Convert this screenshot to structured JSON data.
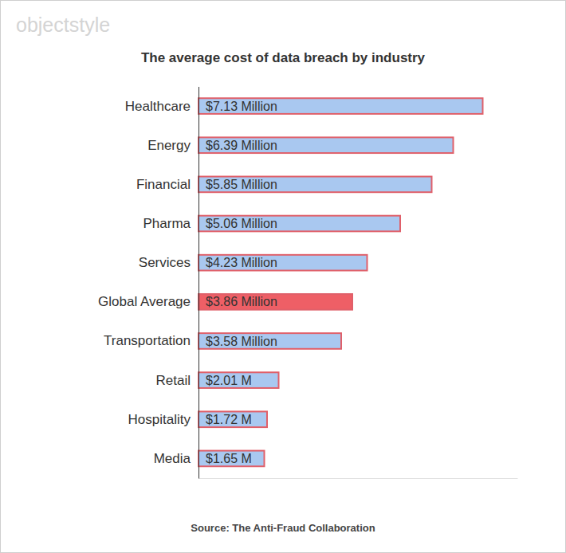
{
  "chart_data": {
    "type": "bar",
    "orientation": "horizontal",
    "title": "The average cost of data breach by industry",
    "categories": [
      "Healthcare",
      "Energy",
      "Financial",
      "Pharma",
      "Services",
      "Global Average",
      "Transportation",
      "Retail",
      "Hospitality",
      "Media"
    ],
    "values": [
      7.13,
      6.39,
      5.85,
      5.06,
      4.23,
      3.86,
      3.58,
      2.01,
      1.72,
      1.65
    ],
    "value_labels": [
      "$7.13 Million",
      "$6.39 Million",
      "$5.85 Million",
      "$5.06 Million",
      "$4.23 Million",
      "$3.86 Million",
      "$3.58 Million",
      "$2.01 M",
      "$1.72 M",
      "$1.65 M"
    ],
    "colors": [
      "#a9c8f0",
      "#a9c8f0",
      "#a9c8f0",
      "#a9c8f0",
      "#a9c8f0",
      "#ee5f66",
      "#a9c8f0",
      "#a9c8f0",
      "#a9c8f0",
      "#a9c8f0"
    ],
    "xlim": [
      0,
      8
    ],
    "xticks": [],
    "tick_labels": "y",
    "data_labels": true,
    "grid": false,
    "annotations": [
      "objectstyle",
      "Source: The Anti-Fraud Collaboration"
    ]
  }
}
